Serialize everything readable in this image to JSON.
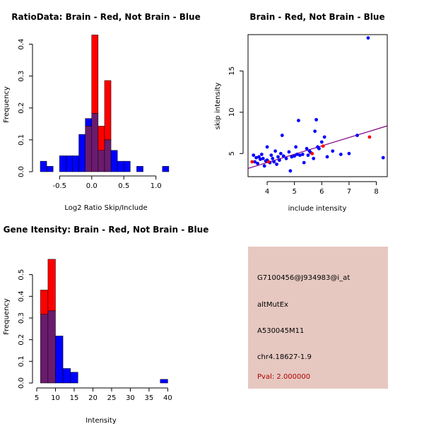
{
  "colors": {
    "brain": "#ff0000",
    "not_brain": "#0000ff",
    "overlap": "#6a1b6e",
    "regression": "#800080",
    "info_bg": "#e6c8c1",
    "pval": "#b00000"
  },
  "chart_data": [
    {
      "id": "ratio_hist",
      "type": "bar",
      "title": "RatioData: Brain - Red, Not Brain - Blue",
      "xlabel": "Log2 Ratio Skip/Include",
      "ylabel": "Frequency",
      "xlim": [
        -0.8,
        1.3
      ],
      "ylim": [
        0,
        0.43
      ],
      "xticks": [
        -0.5,
        0.0,
        0.5,
        1.0
      ],
      "xtick_labels": [
        "-0.5",
        "0.0",
        "0.5",
        "1.0"
      ],
      "yticks": [
        0.0,
        0.1,
        0.2,
        0.3,
        0.4
      ],
      "ytick_labels": [
        "0.0",
        "0.1",
        "0.2",
        "0.3",
        "0.4"
      ],
      "bin_edges": [
        -0.8,
        -0.7,
        -0.6,
        -0.5,
        -0.4,
        -0.3,
        -0.2,
        -0.1,
        0.0,
        0.1,
        0.2,
        0.3,
        0.4,
        0.5,
        0.6,
        0.7,
        0.8,
        0.9,
        1.0,
        1.1,
        1.2,
        1.3
      ],
      "series": [
        {
          "name": "Brain",
          "color": "red",
          "values": [
            0,
            0,
            0,
            0,
            0,
            0,
            0,
            0.143,
            0.429,
            0.143,
            0.286,
            0,
            0,
            0,
            0,
            0,
            0,
            0,
            0,
            0,
            0
          ]
        },
        {
          "name": "Not Brain",
          "color": "blue",
          "values": [
            0.033,
            0.017,
            0,
            0.05,
            0.05,
            0.05,
            0.117,
            0.167,
            0.183,
            0.067,
            0.1,
            0.067,
            0.033,
            0.033,
            0,
            0.017,
            0,
            0,
            0,
            0.017,
            0
          ]
        }
      ]
    },
    {
      "id": "scatter",
      "type": "scatter",
      "title": "Brain - Red, Not Brain - Blue",
      "xlabel": "include intensity",
      "ylabel": "skip intensity",
      "xlim": [
        3.3,
        8.4
      ],
      "ylim": [
        2.2,
        19.4
      ],
      "xticks": [
        4,
        5,
        6,
        7,
        8
      ],
      "xtick_labels": [
        "4",
        "5",
        "6",
        "7",
        "8"
      ],
      "yticks": [
        5,
        10,
        15
      ],
      "ytick_labels": [
        "5",
        "10",
        "15"
      ],
      "regression": {
        "x": [
          3.3,
          8.4
        ],
        "y": [
          3.2,
          8.35
        ]
      },
      "series": [
        {
          "name": "Not Brain",
          "color": "blue",
          "points": [
            [
              3.5,
              4.8
            ],
            [
              3.55,
              4.0
            ],
            [
              3.6,
              4.5
            ],
            [
              3.65,
              3.8
            ],
            [
              3.7,
              4.6
            ],
            [
              3.75,
              4.3
            ],
            [
              3.8,
              4.9
            ],
            [
              3.85,
              4.4
            ],
            [
              3.9,
              3.5
            ],
            [
              3.95,
              4.1
            ],
            [
              4.0,
              5.8
            ],
            [
              4.0,
              4.2
            ],
            [
              4.1,
              3.9
            ],
            [
              4.15,
              4.8
            ],
            [
              4.2,
              4.4
            ],
            [
              4.25,
              4.0
            ],
            [
              4.3,
              5.3
            ],
            [
              4.35,
              3.7
            ],
            [
              4.4,
              4.6
            ],
            [
              4.45,
              4.2
            ],
            [
              4.5,
              5.0
            ],
            [
              4.55,
              7.2
            ],
            [
              4.6,
              4.7
            ],
            [
              4.7,
              4.4
            ],
            [
              4.8,
              5.2
            ],
            [
              4.85,
              2.9
            ],
            [
              4.9,
              4.6
            ],
            [
              5.0,
              4.7
            ],
            [
              5.05,
              5.8
            ],
            [
              5.1,
              4.9
            ],
            [
              5.15,
              9.0
            ],
            [
              5.2,
              4.8
            ],
            [
              5.3,
              4.9
            ],
            [
              5.35,
              3.9
            ],
            [
              5.45,
              5.6
            ],
            [
              5.5,
              4.8
            ],
            [
              5.55,
              5.3
            ],
            [
              5.6,
              5.1
            ],
            [
              5.7,
              4.4
            ],
            [
              5.75,
              7.7
            ],
            [
              5.8,
              9.1
            ],
            [
              5.85,
              5.8
            ],
            [
              5.9,
              5.6
            ],
            [
              6.0,
              6.4
            ],
            [
              6.1,
              7.0
            ],
            [
              6.2,
              4.6
            ],
            [
              6.4,
              5.3
            ],
            [
              6.7,
              4.9
            ],
            [
              7.0,
              5.0
            ],
            [
              7.3,
              7.2
            ],
            [
              7.7,
              19.0
            ],
            [
              8.25,
              4.5
            ]
          ]
        },
        {
          "name": "Brain",
          "color": "red",
          "points": [
            [
              3.45,
              4.0
            ],
            [
              4.05,
              4.0
            ],
            [
              5.65,
              5.0
            ],
            [
              6.05,
              5.9
            ],
            [
              7.75,
              7.0
            ]
          ]
        }
      ]
    },
    {
      "id": "gene_hist",
      "type": "bar",
      "title": "Gene Itensity: Brain - Red, Not Brain - Blue",
      "xlabel": "Intensity",
      "ylabel": "Frequency",
      "xlim": [
        5,
        42
      ],
      "ylim": [
        0,
        0.6
      ],
      "xticks": [
        5,
        10,
        15,
        20,
        25,
        30,
        35,
        40
      ],
      "xtick_labels": [
        "5",
        "10",
        "15",
        "20",
        "25",
        "30",
        "35",
        "40"
      ],
      "yticks": [
        0.0,
        0.1,
        0.2,
        0.3,
        0.4,
        0.5
      ],
      "ytick_labels": [
        "0.0",
        "0.1",
        "0.2",
        "0.3",
        "0.4",
        "0.5"
      ],
      "bin_edges": [
        6,
        8,
        10,
        12,
        14,
        16,
        18,
        20,
        22,
        24,
        26,
        28,
        30,
        32,
        34,
        36,
        38,
        40,
        42
      ],
      "series": [
        {
          "name": "Brain",
          "color": "red",
          "values": [
            0.429,
            0.571,
            0,
            0,
            0,
            0,
            0,
            0,
            0,
            0,
            0,
            0,
            0,
            0,
            0,
            0,
            0,
            0
          ]
        },
        {
          "name": "Not Brain",
          "color": "blue",
          "values": [
            0.317,
            0.333,
            0.217,
            0.067,
            0.05,
            0,
            0,
            0,
            0,
            0,
            0,
            0,
            0,
            0,
            0,
            0,
            0.017,
            0
          ]
        }
      ]
    }
  ],
  "info_panel": {
    "probe_id": "G7100456@J934983@i_at",
    "event_type": "altMutEx",
    "gene_id": "A530045M11",
    "location": "chr4.18627-1.9",
    "pval": "Pval: 2.000000"
  }
}
